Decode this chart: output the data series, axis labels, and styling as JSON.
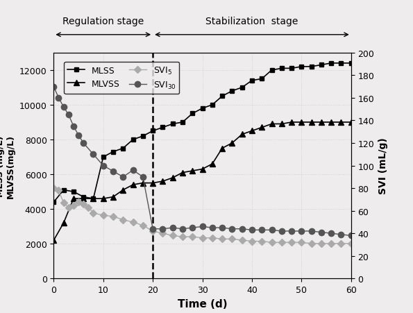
{
  "MLSS_x": [
    0,
    2,
    4,
    6,
    8,
    10,
    12,
    14,
    16,
    18,
    20,
    22,
    24,
    26,
    28,
    30,
    32,
    34,
    36,
    38,
    40,
    42,
    44,
    46,
    48,
    50,
    52,
    54,
    56,
    58,
    60
  ],
  "MLSS_y": [
    4400,
    5100,
    5000,
    4700,
    4600,
    7000,
    7300,
    7500,
    8000,
    8200,
    8500,
    8700,
    8900,
    9000,
    9500,
    9800,
    10000,
    10500,
    10800,
    11000,
    11400,
    11500,
    12000,
    12100,
    12100,
    12200,
    12200,
    12300,
    12400,
    12400,
    12400
  ],
  "MLVSS_x": [
    0,
    2,
    4,
    6,
    8,
    10,
    12,
    14,
    16,
    18,
    20,
    22,
    24,
    26,
    28,
    30,
    32,
    34,
    36,
    38,
    40,
    42,
    44,
    46,
    48,
    50,
    52,
    54,
    56,
    58,
    60
  ],
  "MLVSS_y": [
    2200,
    3200,
    4600,
    4600,
    4600,
    4600,
    4700,
    5100,
    5400,
    5500,
    5500,
    5600,
    5800,
    6100,
    6200,
    6300,
    6600,
    7500,
    7800,
    8300,
    8500,
    8700,
    8900,
    8900,
    9000,
    9000,
    9000,
    9000,
    9000,
    9000,
    9000
  ],
  "SVI5_x": [
    0,
    1,
    2,
    3,
    4,
    5,
    6,
    7,
    8,
    10,
    12,
    14,
    16,
    18,
    20,
    22,
    24,
    26,
    28,
    30,
    32,
    34,
    36,
    38,
    40,
    42,
    44,
    46,
    48,
    50,
    52,
    54,
    56,
    58,
    60
  ],
  "SVI5_y": [
    80,
    78,
    67,
    63,
    65,
    68,
    66,
    63,
    58,
    56,
    55,
    52,
    50,
    47,
    42,
    40,
    38,
    37,
    37,
    36,
    36,
    35,
    35,
    34,
    33,
    33,
    32,
    32,
    32,
    32,
    31,
    31,
    31,
    31,
    31
  ],
  "SVI30_x": [
    0,
    1,
    2,
    3,
    4,
    5,
    6,
    8,
    10,
    12,
    14,
    16,
    18,
    20,
    22,
    24,
    26,
    28,
    30,
    32,
    34,
    36,
    38,
    40,
    42,
    44,
    46,
    48,
    50,
    52,
    54,
    56,
    58,
    60
  ],
  "SVI30_y": [
    170,
    160,
    152,
    145,
    135,
    127,
    120,
    110,
    100,
    95,
    90,
    96,
    90,
    44,
    44,
    45,
    44,
    45,
    46,
    45,
    45,
    44,
    44,
    43,
    43,
    43,
    42,
    42,
    42,
    42,
    41,
    40,
    39,
    38
  ],
  "xlabel": "Time (d)",
  "ylabel_left": "MLSS (mg/L)\nMLVSS(mg/L)",
  "ylabel_right": "SVI (mL/g)",
  "xlim": [
    0,
    60
  ],
  "ylim_left": [
    0,
    13000
  ],
  "ylim_right": [
    0,
    200
  ],
  "yticks_left": [
    0,
    2000,
    4000,
    6000,
    8000,
    10000,
    12000
  ],
  "yticks_right": [
    0,
    20,
    40,
    60,
    80,
    100,
    120,
    140,
    160,
    180,
    200
  ],
  "xticks": [
    0,
    10,
    20,
    30,
    40,
    50,
    60
  ],
  "vline_x": 20,
  "reg_stage_label": "Regulation stage",
  "stab_stage_label": "Stabilization  stage",
  "background_color": "#eeecec",
  "legend_MLSS": "MLSS",
  "legend_MLVSS": "MLVSS",
  "legend_SVI5": "SVI$_5$",
  "legend_SVI30": "SVI$_{30}$",
  "MLSS_color": "#000000",
  "MLVSS_color": "#000000",
  "SVI5_color": "#aaaaaa",
  "SVI30_color": "#555555",
  "dot_grid_color": "#cccccc"
}
